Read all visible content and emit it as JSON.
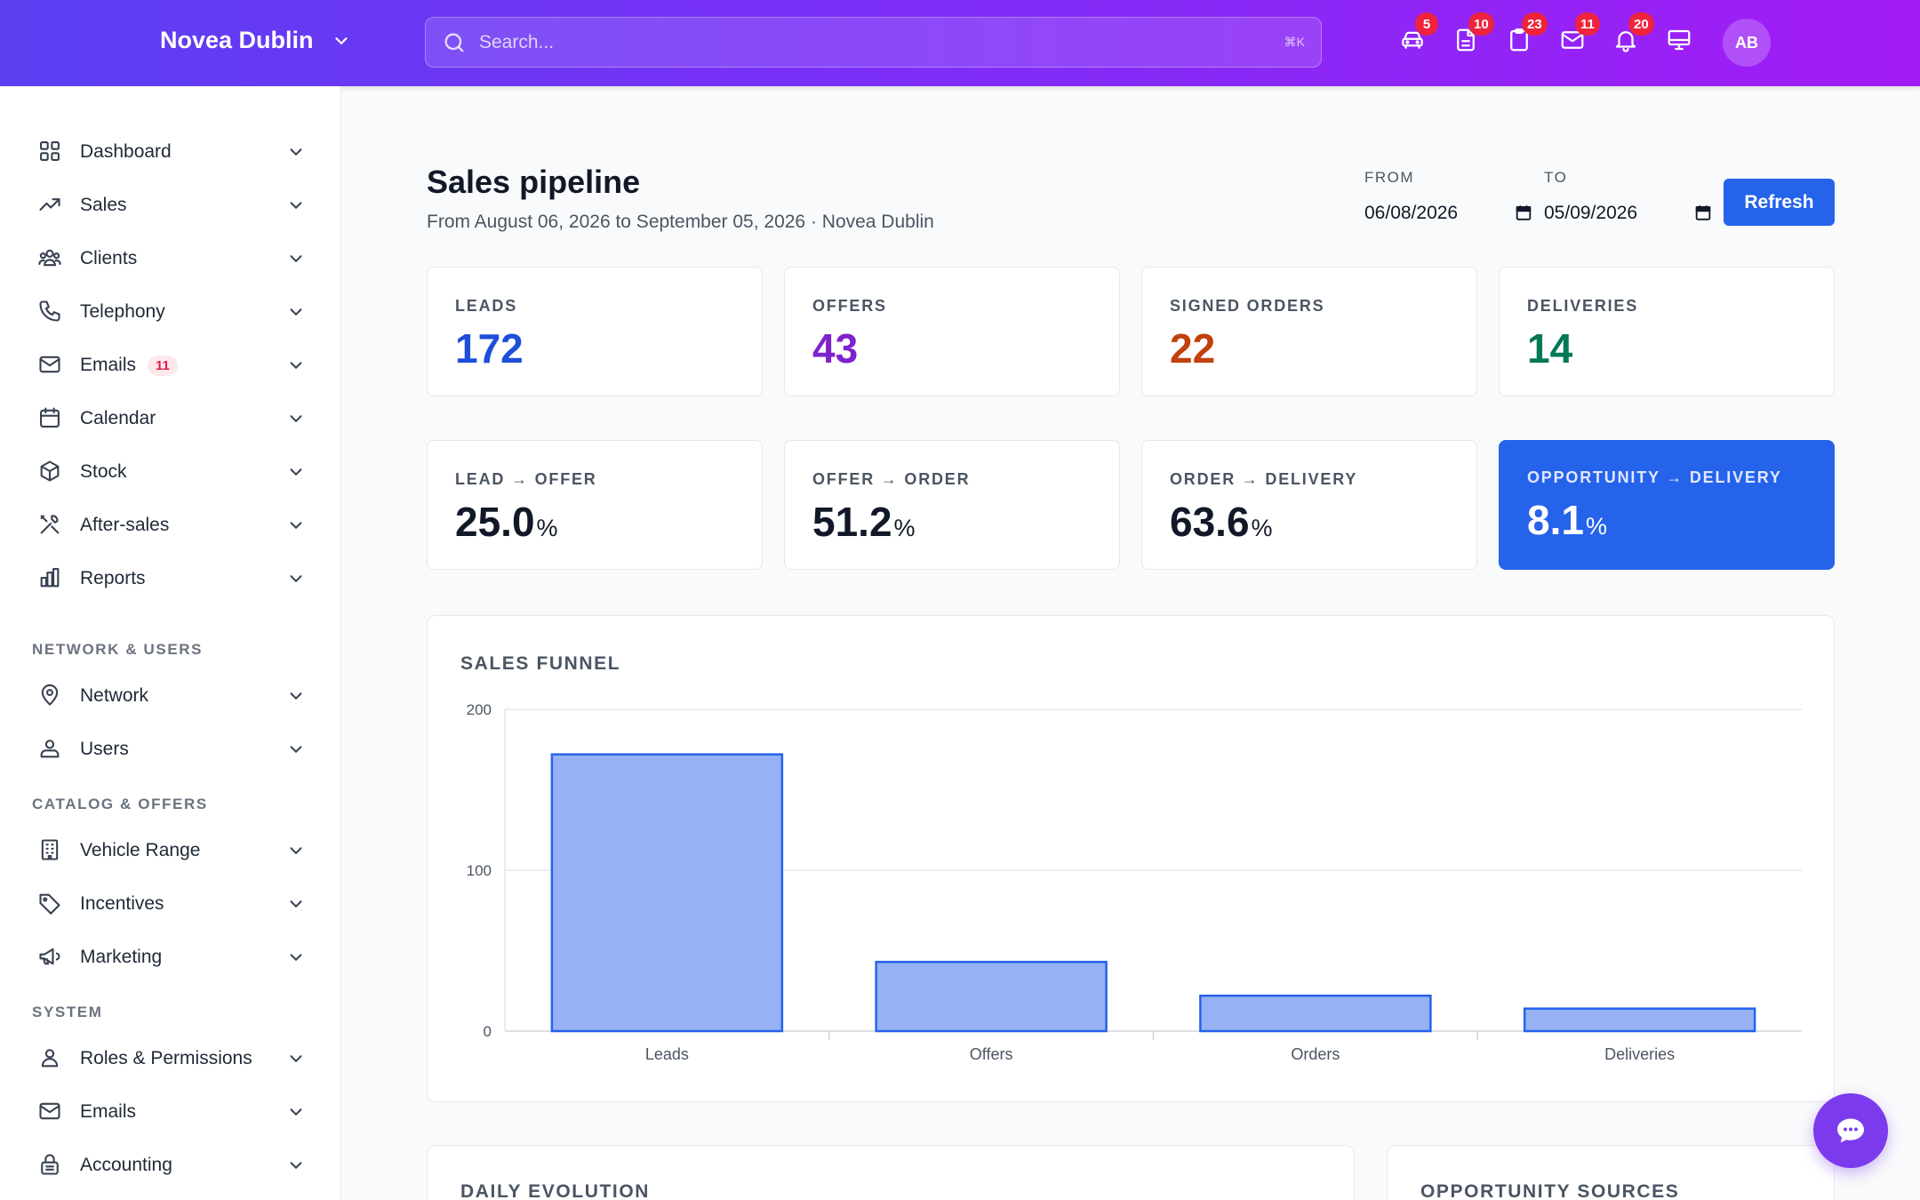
{
  "header": {
    "brand": "Novea Dublin",
    "search_placeholder": "Search...",
    "search_shortcut": "⌘K",
    "icons": [
      {
        "name": "car-icon",
        "badge": "5"
      },
      {
        "name": "document-icon",
        "badge": "10"
      },
      {
        "name": "clipboard-icon",
        "badge": "23"
      },
      {
        "name": "mail-icon",
        "badge": "11"
      },
      {
        "name": "bell-icon",
        "badge": "20"
      },
      {
        "name": "monitor-icon",
        "badge": ""
      }
    ],
    "avatar_initials": "AB"
  },
  "sidebar": {
    "items": [
      {
        "label": "Dashboard",
        "icon": "grid-icon"
      },
      {
        "label": "Sales",
        "icon": "trending-up-icon"
      },
      {
        "label": "Clients",
        "icon": "users-icon"
      },
      {
        "label": "Telephony",
        "icon": "phone-icon"
      },
      {
        "label": "Emails",
        "icon": "mail-icon",
        "badge": "11"
      },
      {
        "label": "Calendar",
        "icon": "calendar-icon"
      },
      {
        "label": "Stock",
        "icon": "box-icon"
      },
      {
        "label": "After-sales",
        "icon": "tools-icon"
      },
      {
        "label": "Reports",
        "icon": "bar-chart-icon"
      }
    ],
    "sections": [
      {
        "title": "NETWORK & USERS",
        "items": [
          {
            "label": "Network",
            "icon": "location-pin-icon"
          },
          {
            "label": "Users",
            "icon": "user-icon"
          }
        ]
      },
      {
        "title": "CATALOG & OFFERS",
        "items": [
          {
            "label": "Vehicle Range",
            "icon": "building-icon"
          },
          {
            "label": "Incentives",
            "icon": "tag-icon"
          },
          {
            "label": "Marketing",
            "icon": "megaphone-icon"
          }
        ]
      },
      {
        "title": "SYSTEM",
        "items": [
          {
            "label": "Roles & Permissions",
            "icon": "person-icon"
          },
          {
            "label": "Emails",
            "icon": "mail-icon"
          },
          {
            "label": "Accounting",
            "icon": "lock-icon"
          }
        ]
      }
    ]
  },
  "page": {
    "title": "Sales pipeline",
    "subtitle": "From August 06, 2026 to September 05, 2026 · Novea Dublin",
    "from_label": "FROM",
    "from_value": "06/08/2026",
    "to_label": "TO",
    "to_value": "05/09/2026",
    "refresh_label": "Refresh"
  },
  "kpis": [
    {
      "label": "LEADS",
      "value": "172",
      "color": "#1d4ed8"
    },
    {
      "label": "OFFERS",
      "value": "43",
      "color": "#7e22ce"
    },
    {
      "label": "SIGNED ORDERS",
      "value": "22",
      "color": "#c2410c"
    },
    {
      "label": "DELIVERIES",
      "value": "14",
      "color": "#047857"
    }
  ],
  "rates": [
    {
      "label": "LEAD → OFFER",
      "value": "25.0",
      "unit": "%"
    },
    {
      "label": "OFFER → ORDER",
      "value": "51.2",
      "unit": "%"
    },
    {
      "label": "ORDER → DELIVERY",
      "value": "63.6",
      "unit": "%"
    },
    {
      "label": "OPPORTUNITY → DELIVERY",
      "value": "8.1",
      "unit": "%"
    }
  ],
  "funnel": {
    "title": "SALES FUNNEL",
    "chart_data": {
      "type": "bar",
      "categories": [
        "Leads",
        "Offers",
        "Orders",
        "Deliveries"
      ],
      "values": [
        172,
        43,
        22,
        14
      ],
      "ylim": [
        0,
        200
      ],
      "yticks": [
        0,
        100,
        200
      ],
      "title": "SALES FUNNEL",
      "xlabel": "",
      "ylabel": "",
      "bar_color": "#96b2f4",
      "bar_stroke": "#2563eb",
      "grid": true
    }
  },
  "panels": {
    "daily_title": "DAILY EVOLUTION",
    "sources_title": "OPPORTUNITY SOURCES"
  },
  "colors": {
    "accent": "#2563eb",
    "header_gradient_start": "#5b3ff1",
    "header_gradient_end": "#a21cf5",
    "badge": "#ef233c"
  }
}
